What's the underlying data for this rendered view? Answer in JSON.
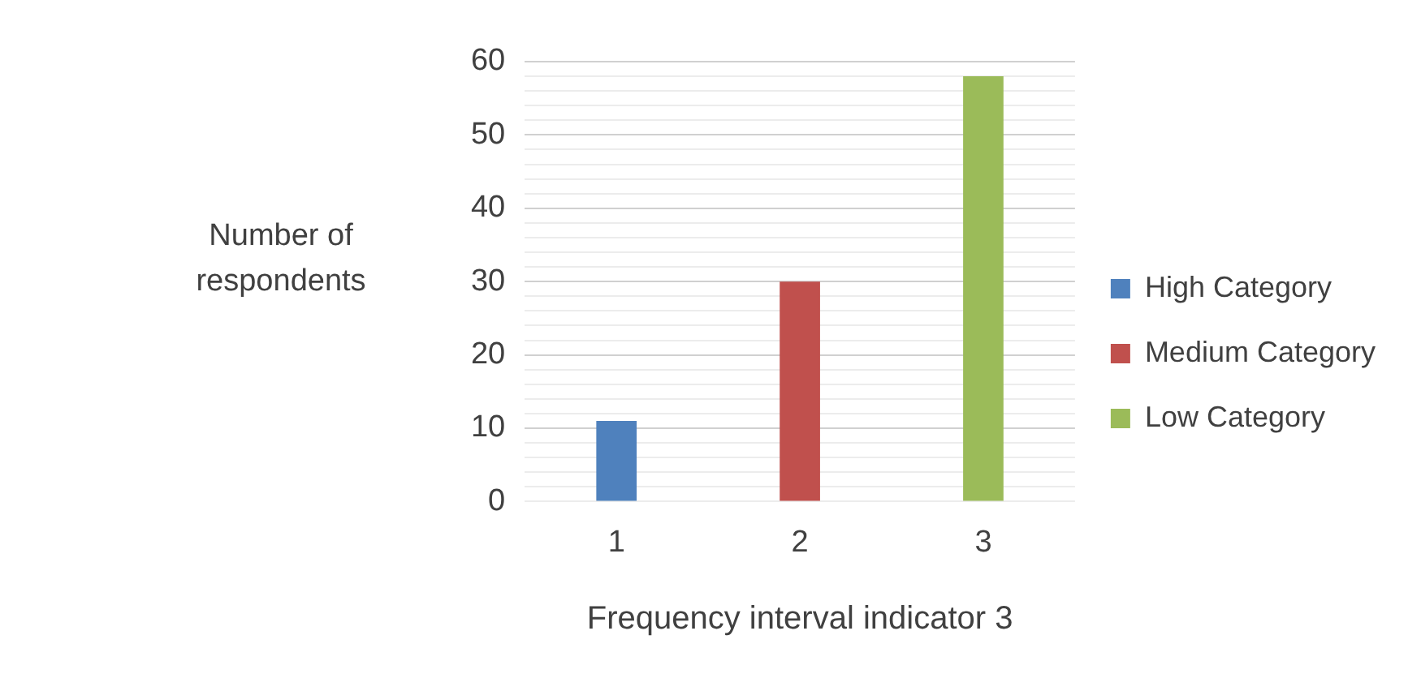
{
  "chart_data": {
    "type": "bar",
    "xlabel": "Frequency interval indicator 3",
    "ylabel": "Number of respondents",
    "categories": [
      "1",
      "2",
      "3"
    ],
    "series": [
      {
        "name": "High Category",
        "color": "#4f81bd",
        "values": [
          11,
          null,
          null
        ]
      },
      {
        "name": "Medium Category",
        "color": "#c0504d",
        "values": [
          null,
          30,
          null
        ]
      },
      {
        "name": "Low Category",
        "color": "#9bbb59",
        "values": [
          null,
          null,
          58
        ]
      }
    ],
    "ylim": [
      0,
      60
    ],
    "yticks": [
      0,
      {
        "value": 2,
        "label": null
      },
      {
        "value": 4,
        "label": null
      },
      {
        "value": 6,
        "label": null
      },
      {
        "value": 8,
        "label": null
      },
      10,
      {
        "value": 12,
        "label": null
      },
      {
        "value": 14,
        "label": null
      },
      {
        "value": 16,
        "label": null
      },
      {
        "value": 18,
        "label": null
      },
      20,
      {
        "value": 22,
        "label": null
      },
      {
        "value": 24,
        "label": null
      },
      {
        "value": 26,
        "label": null
      },
      {
        "value": 28,
        "label": null
      },
      30,
      {
        "value": 32,
        "label": null
      },
      {
        "value": 34,
        "label": null
      },
      {
        "value": 36,
        "label": null
      },
      {
        "value": 38,
        "label": null
      },
      40,
      {
        "value": 42,
        "label": null
      },
      {
        "value": 44,
        "label": null
      },
      {
        "value": 46,
        "label": null
      },
      {
        "value": 48,
        "label": null
      },
      50,
      {
        "value": 52,
        "label": null
      },
      {
        "value": 54,
        "label": null
      },
      {
        "value": 56,
        "label": null
      },
      {
        "value": 58,
        "label": null
      },
      60
    ],
    "grid": "y",
    "legend": "right"
  }
}
